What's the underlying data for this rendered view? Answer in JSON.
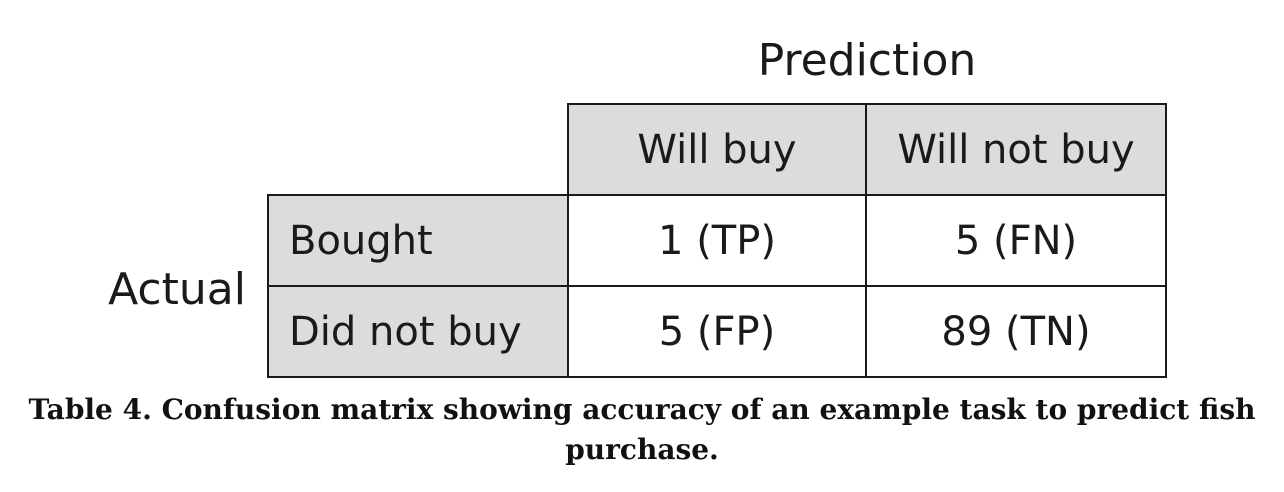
{
  "table": {
    "column_group_label": "Prediction",
    "row_group_label": "Actual",
    "columns": [
      "Will buy",
      "Will not buy"
    ],
    "rows": [
      {
        "label": "Bought",
        "cells": [
          "1 (TP)",
          "5 (FN)"
        ]
      },
      {
        "label": "Did not buy",
        "cells": [
          "5 (FP)",
          "89 (TN)"
        ]
      }
    ],
    "colors": {
      "header_fill": "#dcdcdc",
      "cell_fill": "#ffffff",
      "border": "#1a1a1a"
    }
  },
  "caption": "Table 4. Confusion matrix showing accuracy of an example task to predict fish purchase."
}
